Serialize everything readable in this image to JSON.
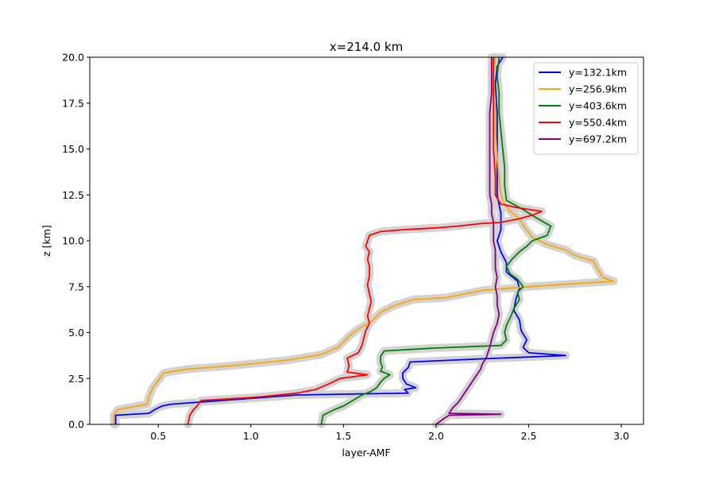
{
  "chart_data": {
    "type": "line",
    "title": "x=214.0 km",
    "xlabel": "layer-AMF",
    "ylabel": "z [km]",
    "xlim": [
      0.13,
      3.12
    ],
    "ylim": [
      0,
      20
    ],
    "xticks": [
      0.5,
      1.0,
      1.5,
      2.0,
      2.5,
      3.0
    ],
    "xtick_labels": [
      "0.5",
      "1.0",
      "1.5",
      "2.0",
      "2.5",
      "3.0"
    ],
    "yticks": [
      0,
      2.5,
      5,
      7.5,
      10,
      12.5,
      15,
      17.5,
      20
    ],
    "ytick_labels": [
      "0.0",
      "2.5",
      "5.0",
      "7.5",
      "10.0",
      "12.5",
      "15.0",
      "17.5",
      "20.0"
    ],
    "grid": false,
    "legend_position": "upper right",
    "uncertainty_band_color": "#d3d3d3",
    "series": [
      {
        "name": "y=132.1km",
        "color": "#0000ff",
        "points": [
          [
            0.27,
            0.0
          ],
          [
            0.27,
            0.5
          ],
          [
            0.45,
            0.6
          ],
          [
            0.48,
            0.8
          ],
          [
            0.52,
            1.0
          ],
          [
            0.57,
            1.1
          ],
          [
            1.25,
            1.6
          ],
          [
            1.85,
            1.7
          ],
          [
            1.83,
            1.9
          ],
          [
            1.89,
            2.0
          ],
          [
            1.84,
            2.2
          ],
          [
            1.82,
            2.5
          ],
          [
            1.82,
            2.8
          ],
          [
            1.85,
            3.1
          ],
          [
            1.86,
            3.4
          ],
          [
            2.2,
            3.55
          ],
          [
            2.7,
            3.75
          ],
          [
            2.5,
            3.9
          ],
          [
            2.47,
            4.2
          ],
          [
            2.49,
            4.6
          ],
          [
            2.46,
            5.1
          ],
          [
            2.45,
            5.7
          ],
          [
            2.42,
            6.2
          ],
          [
            2.43,
            6.8
          ],
          [
            2.45,
            7.4
          ],
          [
            2.44,
            7.8
          ],
          [
            2.38,
            8.3
          ],
          [
            2.38,
            8.8
          ],
          [
            2.35,
            9.4
          ],
          [
            2.33,
            10.0
          ],
          [
            2.35,
            10.6
          ],
          [
            2.35,
            11.5
          ],
          [
            2.33,
            12.5
          ],
          [
            2.33,
            14.0
          ],
          [
            2.33,
            15.5
          ],
          [
            2.33,
            17.0
          ],
          [
            2.32,
            18.5
          ],
          [
            2.33,
            19.5
          ],
          [
            2.36,
            20.0
          ]
        ]
      },
      {
        "name": "y=256.9km",
        "color": "#ffa500",
        "points": [
          [
            0.26,
            0.0
          ],
          [
            0.26,
            0.5
          ],
          [
            0.28,
            0.8
          ],
          [
            0.44,
            1.1
          ],
          [
            0.45,
            1.5
          ],
          [
            0.47,
            2.0
          ],
          [
            0.5,
            2.4
          ],
          [
            0.53,
            2.8
          ],
          [
            0.65,
            3.0
          ],
          [
            0.9,
            3.2
          ],
          [
            1.2,
            3.5
          ],
          [
            1.38,
            3.8
          ],
          [
            1.47,
            4.2
          ],
          [
            1.5,
            4.5
          ],
          [
            1.53,
            4.8
          ],
          [
            1.58,
            5.2
          ],
          [
            1.65,
            5.6
          ],
          [
            1.7,
            6.1
          ],
          [
            1.78,
            6.5
          ],
          [
            1.88,
            6.8
          ],
          [
            2.05,
            6.9
          ],
          [
            2.1,
            7.0
          ],
          [
            2.25,
            7.3
          ],
          [
            2.5,
            7.5
          ],
          [
            2.96,
            7.8
          ],
          [
            2.9,
            8.0
          ],
          [
            2.87,
            8.5
          ],
          [
            2.85,
            8.9
          ],
          [
            2.75,
            9.2
          ],
          [
            2.7,
            9.5
          ],
          [
            2.6,
            9.8
          ],
          [
            2.52,
            10.2
          ],
          [
            2.48,
            10.7
          ],
          [
            2.45,
            11.2
          ],
          [
            2.4,
            11.6
          ],
          [
            2.37,
            12.0
          ],
          [
            2.35,
            12.5
          ],
          [
            2.34,
            13.5
          ],
          [
            2.33,
            14.5
          ],
          [
            2.32,
            16.0
          ],
          [
            2.32,
            17.5
          ],
          [
            2.31,
            19.0
          ],
          [
            2.32,
            20.0
          ]
        ]
      },
      {
        "name": "y=403.6km",
        "color": "#008000",
        "points": [
          [
            1.38,
            0.0
          ],
          [
            1.39,
            0.5
          ],
          [
            1.45,
            0.8
          ],
          [
            1.5,
            1.0
          ],
          [
            1.55,
            1.3
          ],
          [
            1.6,
            1.6
          ],
          [
            1.65,
            1.8
          ],
          [
            1.68,
            2.0
          ],
          [
            1.7,
            2.3
          ],
          [
            1.72,
            2.5
          ],
          [
            1.75,
            2.7
          ],
          [
            1.7,
            2.9
          ],
          [
            1.71,
            3.1
          ],
          [
            1.7,
            3.4
          ],
          [
            1.7,
            3.7
          ],
          [
            1.72,
            4.0
          ],
          [
            1.98,
            4.15
          ],
          [
            2.35,
            4.3
          ],
          [
            2.38,
            4.6
          ],
          [
            2.37,
            5.0
          ],
          [
            2.38,
            5.4
          ],
          [
            2.4,
            5.8
          ],
          [
            2.42,
            6.3
          ],
          [
            2.45,
            6.8
          ],
          [
            2.44,
            7.2
          ],
          [
            2.47,
            7.5
          ],
          [
            2.44,
            7.9
          ],
          [
            2.4,
            8.2
          ],
          [
            2.38,
            8.6
          ],
          [
            2.41,
            9.0
          ],
          [
            2.45,
            9.4
          ],
          [
            2.49,
            9.7
          ],
          [
            2.52,
            10.0
          ],
          [
            2.6,
            10.3
          ],
          [
            2.62,
            10.8
          ],
          [
            2.55,
            11.2
          ],
          [
            2.47,
            11.7
          ],
          [
            2.38,
            12.2
          ],
          [
            2.37,
            13.0
          ],
          [
            2.37,
            14.0
          ],
          [
            2.36,
            15.0
          ],
          [
            2.35,
            16.0
          ],
          [
            2.34,
            17.0
          ],
          [
            2.34,
            18.0
          ],
          [
            2.33,
            19.0
          ],
          [
            2.34,
            20.0
          ]
        ]
      },
      {
        "name": "y=550.4km",
        "color": "#ff0000",
        "points": [
          [
            0.66,
            0.0
          ],
          [
            0.67,
            0.5
          ],
          [
            0.69,
            0.8
          ],
          [
            0.71,
            1.0
          ],
          [
            0.73,
            1.3
          ],
          [
            0.9,
            1.4
          ],
          [
            1.05,
            1.5
          ],
          [
            1.25,
            1.7
          ],
          [
            1.35,
            1.9
          ],
          [
            1.42,
            2.2
          ],
          [
            1.48,
            2.5
          ],
          [
            1.63,
            2.7
          ],
          [
            1.52,
            2.85
          ],
          [
            1.53,
            3.2
          ],
          [
            1.52,
            3.6
          ],
          [
            1.58,
            3.9
          ],
          [
            1.6,
            4.3
          ],
          [
            1.61,
            4.7
          ],
          [
            1.62,
            5.1
          ],
          [
            1.64,
            5.5
          ],
          [
            1.63,
            5.9
          ],
          [
            1.64,
            6.3
          ],
          [
            1.65,
            6.7
          ],
          [
            1.64,
            7.1
          ],
          [
            1.63,
            7.6
          ],
          [
            1.64,
            8.1
          ],
          [
            1.64,
            8.6
          ],
          [
            1.63,
            9.0
          ],
          [
            1.64,
            9.4
          ],
          [
            1.62,
            9.7
          ],
          [
            1.63,
            10.0
          ],
          [
            1.64,
            10.3
          ],
          [
            1.7,
            10.5
          ],
          [
            1.82,
            10.6
          ],
          [
            2.0,
            10.7
          ],
          [
            2.12,
            10.8
          ],
          [
            2.25,
            10.95
          ],
          [
            2.35,
            11.0
          ],
          [
            2.45,
            11.2
          ],
          [
            2.52,
            11.4
          ],
          [
            2.57,
            11.6
          ],
          [
            2.44,
            11.8
          ],
          [
            2.35,
            12.0
          ],
          [
            2.32,
            12.5
          ],
          [
            2.32,
            13.5
          ],
          [
            2.31,
            15.0
          ],
          [
            2.31,
            16.5
          ],
          [
            2.31,
            18.0
          ],
          [
            2.31,
            19.5
          ],
          [
            2.31,
            20.0
          ]
        ]
      },
      {
        "name": "y=697.2km",
        "color": "#800080",
        "points": [
          [
            2.0,
            0.0
          ],
          [
            2.04,
            0.3
          ],
          [
            2.07,
            0.5
          ],
          [
            2.35,
            0.55
          ],
          [
            2.07,
            0.6
          ],
          [
            2.09,
            0.9
          ],
          [
            2.12,
            1.2
          ],
          [
            2.14,
            1.5
          ],
          [
            2.16,
            1.8
          ],
          [
            2.18,
            2.1
          ],
          [
            2.2,
            2.4
          ],
          [
            2.22,
            2.7
          ],
          [
            2.24,
            3.0
          ],
          [
            2.25,
            3.3
          ],
          [
            2.27,
            3.6
          ],
          [
            2.28,
            3.9
          ],
          [
            2.29,
            4.2
          ],
          [
            2.3,
            4.6
          ],
          [
            2.31,
            5.0
          ],
          [
            2.33,
            5.5
          ],
          [
            2.34,
            6.0
          ],
          [
            2.33,
            6.5
          ],
          [
            2.33,
            7.0
          ],
          [
            2.32,
            7.5
          ],
          [
            2.33,
            8.0
          ],
          [
            2.32,
            8.5
          ],
          [
            2.32,
            9.0
          ],
          [
            2.32,
            9.5
          ],
          [
            2.31,
            10.0
          ],
          [
            2.31,
            10.5
          ],
          [
            2.31,
            11.0
          ],
          [
            2.3,
            11.5
          ],
          [
            2.3,
            12.0
          ],
          [
            2.29,
            12.5
          ],
          [
            2.29,
            13.0
          ],
          [
            2.29,
            14.0
          ],
          [
            2.29,
            15.0
          ],
          [
            2.29,
            16.0
          ],
          [
            2.29,
            17.0
          ],
          [
            2.3,
            18.0
          ],
          [
            2.3,
            19.0
          ],
          [
            2.3,
            20.0
          ]
        ]
      }
    ]
  }
}
